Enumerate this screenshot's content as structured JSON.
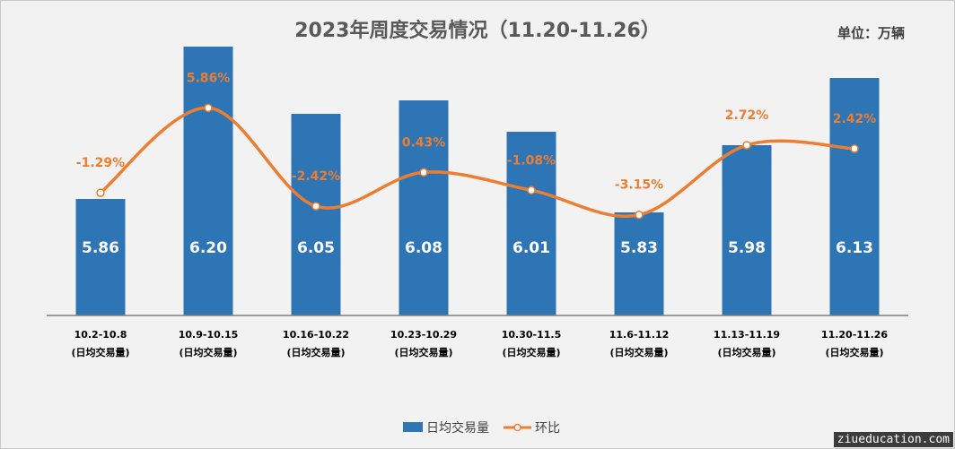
{
  "title": "2023年周度交易情况（11.20-11.26）",
  "unit_label": "单位：万辆",
  "watermark": "ziueducation.com",
  "colors": {
    "bar": "#2e75b6",
    "line": "#ed7d31",
    "background": "#f2f2f2",
    "axis": "#7f7f7f"
  },
  "chart_data": {
    "type": "bar",
    "title": "2023年周度交易情况（11.20-11.26）",
    "categories": [
      "10.2-10.8",
      "10.9-10.15",
      "10.16-10.22",
      "10.23-10.29",
      "10.30-11.5",
      "11.6-11.12",
      "11.13-11.19",
      "11.20-11.26"
    ],
    "category_sublabel": "(日均交易量)",
    "series": [
      {
        "name": "日均交易量",
        "type": "bar",
        "values": [
          5.86,
          6.2,
          6.05,
          6.08,
          6.01,
          5.83,
          5.98,
          6.13
        ],
        "labels": [
          "5.86",
          "6.20",
          "6.05",
          "6.08",
          "6.01",
          "5.83",
          "5.98",
          "6.13"
        ]
      },
      {
        "name": "环比",
        "type": "line",
        "smooth": true,
        "values": [
          -1.29,
          5.86,
          -2.42,
          0.43,
          -1.08,
          -3.15,
          2.72,
          2.42
        ],
        "labels": [
          "-1.29%",
          "5.86%",
          "-2.42%",
          "0.43%",
          "-1.08%",
          "-3.15%",
          "2.72%",
          "2.42%"
        ]
      }
    ],
    "axes_visible": false,
    "grid": false,
    "legend_position": "bottom"
  }
}
